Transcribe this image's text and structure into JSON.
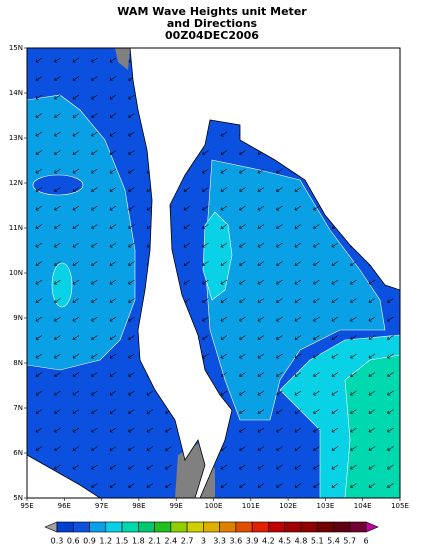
{
  "title": [
    "WAM Wave Heights unit Meter",
    "and Directions",
    "00Z04DEC2006"
  ],
  "map": {
    "lat_labels": [
      "15N",
      "14N",
      "13N",
      "12N",
      "11N",
      "10N",
      "9N",
      "8N",
      "7N",
      "6N",
      "5N"
    ],
    "lon_labels": [
      "95E",
      "96E",
      "97E",
      "98E",
      "99E",
      "100E",
      "101E",
      "102E",
      "103E",
      "104E",
      "105E"
    ]
  },
  "colorbar": {
    "labels": [
      "0.3",
      "0.6",
      "0.9",
      "1.2",
      "1.5",
      "1.8",
      "2.1",
      "2.4",
      "2.7",
      "3",
      "3.3",
      "3.6",
      "3.9",
      "4.2",
      "4.5",
      "4.8",
      "5.1",
      "5.4",
      "5.7",
      "6"
    ],
    "colors": [
      "#a0a0a0",
      "#0040d0",
      "#0c50e0",
      "#0aa0e6",
      "#0ad2e6",
      "#00d8b0",
      "#00c870",
      "#20c020",
      "#90d000",
      "#d0d000",
      "#e0b000",
      "#e08000",
      "#e05000",
      "#e02000",
      "#c00000",
      "#a00000",
      "#900000",
      "#700000",
      "#600010",
      "#700030",
      "#c000a0"
    ]
  }
}
